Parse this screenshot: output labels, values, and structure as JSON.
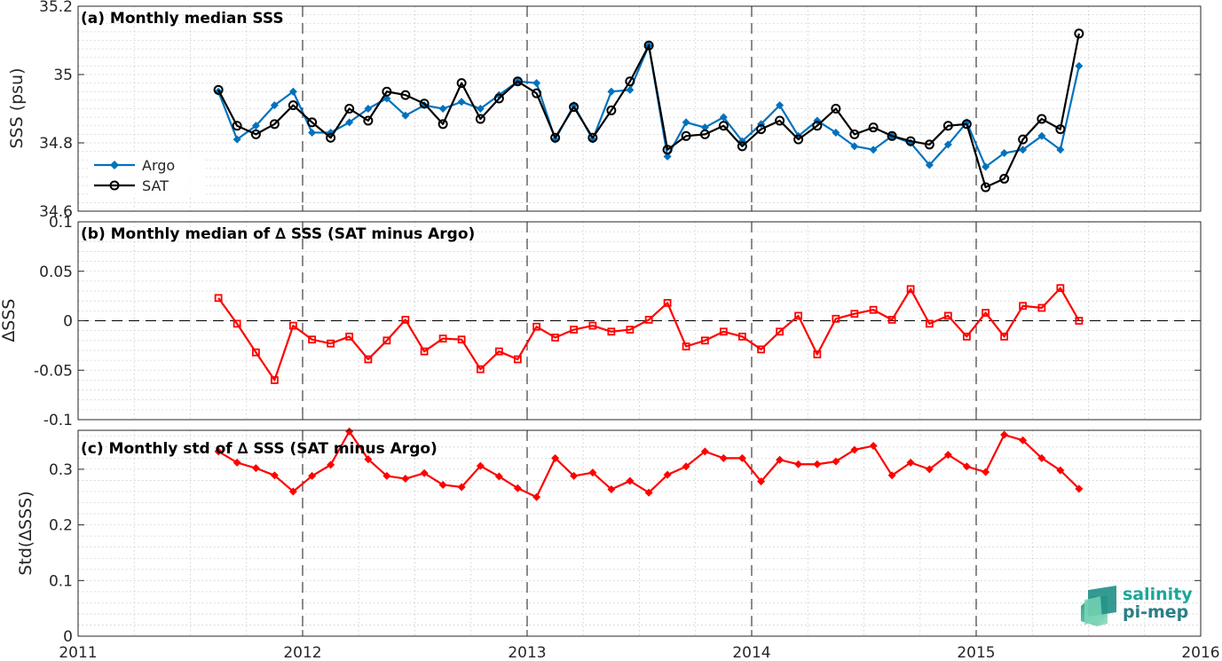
{
  "chart_data": [
    {
      "type": "line",
      "title": "(a) Monthly median SSS",
      "ylabel": "SSS (psu)",
      "xlim": [
        2011,
        2016
      ],
      "ylim": [
        34.6,
        35.2
      ],
      "yticks": [
        "34.6",
        "34.8",
        "35",
        "35.2"
      ],
      "xticks": [
        "2011",
        "2012",
        "2013",
        "2014",
        "2015",
        "2016"
      ],
      "grid": "minor dotted, yearly dashed verticals",
      "legend_position": "bottom-left",
      "x": [
        2011.625,
        2011.708,
        2011.792,
        2011.875,
        2011.958,
        2012.042,
        2012.125,
        2012.208,
        2012.292,
        2012.375,
        2012.458,
        2012.542,
        2012.625,
        2012.708,
        2012.792,
        2012.875,
        2012.958,
        2013.042,
        2013.125,
        2013.208,
        2013.292,
        2013.375,
        2013.458,
        2013.542,
        2013.625,
        2013.708,
        2013.792,
        2013.875,
        2013.958,
        2014.042,
        2014.125,
        2014.208,
        2014.292,
        2014.375,
        2014.458,
        2014.542,
        2014.625,
        2014.708,
        2014.792,
        2014.875,
        2014.958,
        2015.042,
        2015.125,
        2015.208,
        2015.292,
        2015.375,
        2015.458
      ],
      "series": [
        {
          "name": "Argo",
          "color": "#0072bd",
          "marker": "diamond",
          "values": [
            34.95,
            34.81,
            34.85,
            34.91,
            34.95,
            34.83,
            34.83,
            34.86,
            34.9,
            34.93,
            34.88,
            34.91,
            34.9,
            34.92,
            34.9,
            34.94,
            34.98,
            34.975,
            34.81,
            34.91,
            34.81,
            34.95,
            34.955,
            35.085,
            34.76,
            34.86,
            34.845,
            34.875,
            34.805,
            34.855,
            34.91,
            34.82,
            34.865,
            34.83,
            34.79,
            34.78,
            34.82,
            34.8,
            34.735,
            34.795,
            34.86,
            34.73,
            34.77,
            34.78,
            34.82,
            34.78,
            35.025
          ]
        },
        {
          "name": "SAT",
          "color": "#000000",
          "marker": "circle",
          "values": [
            34.955,
            34.85,
            34.825,
            34.855,
            34.91,
            34.86,
            34.815,
            34.9,
            34.865,
            34.95,
            34.94,
            34.915,
            34.855,
            34.975,
            34.87,
            34.93,
            34.98,
            34.945,
            34.815,
            34.905,
            34.815,
            34.895,
            34.98,
            35.085,
            34.78,
            34.82,
            34.825,
            34.85,
            34.79,
            34.84,
            34.865,
            34.81,
            34.85,
            34.9,
            34.825,
            34.845,
            34.82,
            34.805,
            34.795,
            34.85,
            34.855,
            34.67,
            34.695,
            34.81,
            34.87,
            34.84,
            35.12
          ]
        }
      ]
    },
    {
      "type": "line",
      "title": "(b) Monthly median of ∆ SSS (SAT minus Argo)",
      "ylabel": "∆SSS",
      "xlim": [
        2011,
        2016
      ],
      "ylim": [
        -0.1,
        0.1
      ],
      "yticks": [
        "-0.1",
        "-0.05",
        "0",
        "0.05",
        "0.1"
      ],
      "xticks": [
        "2011",
        "2012",
        "2013",
        "2014",
        "2015",
        "2016"
      ],
      "reference_line": 0,
      "x": [
        2011.625,
        2011.708,
        2011.792,
        2011.875,
        2011.958,
        2012.042,
        2012.125,
        2012.208,
        2012.292,
        2012.375,
        2012.458,
        2012.542,
        2012.625,
        2012.708,
        2012.792,
        2012.875,
        2012.958,
        2013.042,
        2013.125,
        2013.208,
        2013.292,
        2013.375,
        2013.458,
        2013.542,
        2013.625,
        2013.708,
        2013.792,
        2013.875,
        2013.958,
        2014.042,
        2014.125,
        2014.208,
        2014.292,
        2014.375,
        2014.458,
        2014.542,
        2014.625,
        2014.708,
        2014.792,
        2014.875,
        2014.958,
        2015.042,
        2015.125,
        2015.208,
        2015.292,
        2015.375,
        2015.458
      ],
      "series": [
        {
          "name": "",
          "color": "#ff0000",
          "marker": "square",
          "values": [
            0.023,
            -0.003,
            -0.032,
            -0.06,
            -0.005,
            -0.019,
            -0.023,
            -0.016,
            -0.039,
            -0.02,
            0.001,
            -0.031,
            -0.018,
            -0.019,
            -0.049,
            -0.031,
            -0.039,
            -0.006,
            -0.017,
            -0.009,
            -0.005,
            -0.011,
            -0.009,
            0.001,
            0.018,
            -0.026,
            -0.02,
            -0.011,
            -0.016,
            -0.029,
            -0.011,
            0.005,
            -0.034,
            0.002,
            0.007,
            0.011,
            0.001,
            0.032,
            -0.003,
            0.005,
            -0.016,
            0.008,
            -0.016,
            0.015,
            0.013,
            0.033,
            0.0
          ]
        }
      ]
    },
    {
      "type": "line",
      "title": "(c) Monthly std of ∆ SSS (SAT minus Argo)",
      "ylabel": "Std(∆SSS)",
      "xlim": [
        2011,
        2016
      ],
      "ylim": [
        0,
        0.37
      ],
      "yticks": [
        "0",
        "0.1",
        "0.2",
        "0.3"
      ],
      "xticks": [
        "2011",
        "2012",
        "2013",
        "2014",
        "2015",
        "2016"
      ],
      "x": [
        2011.625,
        2011.708,
        2011.792,
        2011.875,
        2011.958,
        2012.042,
        2012.125,
        2012.208,
        2012.292,
        2012.375,
        2012.458,
        2012.542,
        2012.625,
        2012.708,
        2012.792,
        2012.875,
        2012.958,
        2013.042,
        2013.125,
        2013.208,
        2013.292,
        2013.375,
        2013.458,
        2013.542,
        2013.625,
        2013.708,
        2013.792,
        2013.875,
        2013.958,
        2014.042,
        2014.125,
        2014.208,
        2014.292,
        2014.375,
        2014.458,
        2014.542,
        2014.625,
        2014.708,
        2014.792,
        2014.875,
        2014.958,
        2015.042,
        2015.125,
        2015.208,
        2015.292,
        2015.375,
        2015.458
      ],
      "series": [
        {
          "name": "",
          "color": "#ff0000",
          "marker": "diamond",
          "values": [
            0.332,
            0.312,
            0.302,
            0.289,
            0.26,
            0.288,
            0.308,
            0.368,
            0.318,
            0.288,
            0.283,
            0.293,
            0.272,
            0.268,
            0.306,
            0.287,
            0.266,
            0.25,
            0.32,
            0.288,
            0.294,
            0.264,
            0.279,
            0.258,
            0.29,
            0.305,
            0.332,
            0.32,
            0.32,
            0.278,
            0.317,
            0.309,
            0.309,
            0.314,
            0.335,
            0.342,
            0.289,
            0.312,
            0.3,
            0.326,
            0.305,
            0.295,
            0.362,
            0.352,
            0.32,
            0.298,
            0.265
          ]
        }
      ]
    }
  ],
  "logo": {
    "line1": "salinity",
    "line2": "pi-mep"
  }
}
